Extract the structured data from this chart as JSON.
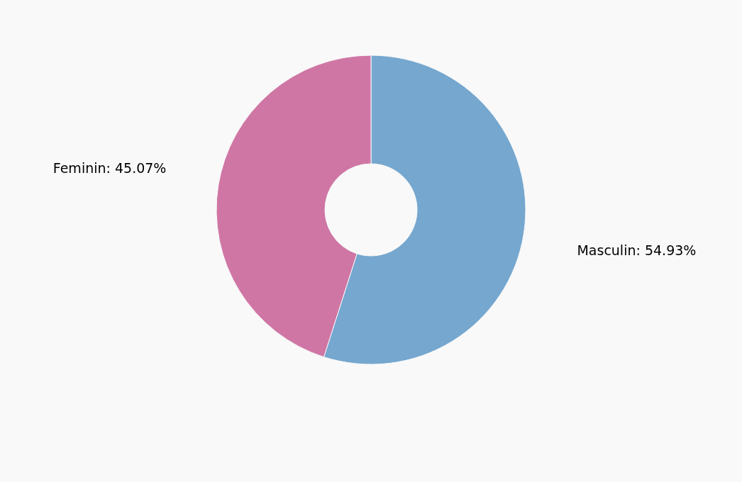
{
  "chart_data": {
    "type": "donut",
    "categories": [
      "Masculin",
      "Feminin"
    ],
    "values": [
      54.93,
      45.07
    ],
    "colors": [
      "#75a7cf",
      "#cf76a5"
    ],
    "value_labels": [
      ": 54.93%",
      ": 45.07%"
    ]
  }
}
